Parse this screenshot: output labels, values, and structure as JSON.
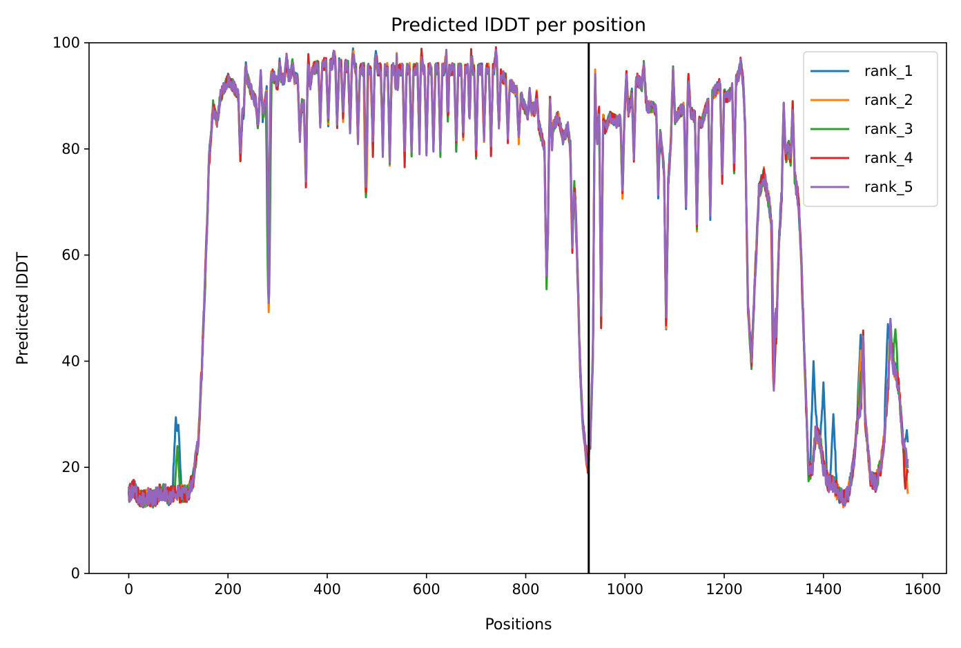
{
  "chart_data": {
    "type": "line",
    "title": "Predicted lDDT per position",
    "xlabel": "Positions",
    "ylabel": "Predicted lDDT",
    "xlim": [
      -80,
      1648
    ],
    "ylim": [
      0,
      100
    ],
    "xticks": [
      0,
      200,
      400,
      600,
      800,
      1000,
      1200,
      1400,
      1600
    ],
    "yticks": [
      0,
      20,
      40,
      60,
      80,
      100
    ],
    "grid": false,
    "legend_position": "top-right",
    "chain_break_x": 927,
    "series": [
      {
        "name": "rank_1",
        "color": "#1f77b4"
      },
      {
        "name": "rank_2",
        "color": "#ff7f0e"
      },
      {
        "name": "rank_3",
        "color": "#2ca02c"
      },
      {
        "name": "rank_4",
        "color": "#d62728"
      },
      {
        "name": "rank_5",
        "color": "#9467bd"
      }
    ],
    "shared_profile": [
      [
        0,
        15
      ],
      [
        10,
        16
      ],
      [
        20,
        14.5
      ],
      [
        30,
        14
      ],
      [
        40,
        14.5
      ],
      [
        50,
        14
      ],
      [
        60,
        15
      ],
      [
        70,
        15.5
      ],
      [
        80,
        14.5
      ],
      [
        90,
        15
      ],
      [
        100,
        15
      ],
      [
        110,
        15
      ],
      [
        120,
        15
      ],
      [
        130,
        18
      ],
      [
        140,
        25
      ],
      [
        148,
        40
      ],
      [
        155,
        58
      ],
      [
        162,
        78
      ],
      [
        170,
        88
      ],
      [
        178,
        85
      ],
      [
        185,
        90
      ],
      [
        200,
        93
      ],
      [
        210,
        92
      ],
      [
        220,
        90
      ],
      [
        230,
        86
      ],
      [
        240,
        93
      ],
      [
        250,
        90
      ],
      [
        260,
        88
      ],
      [
        270,
        86
      ],
      [
        280,
        92
      ],
      [
        290,
        94
      ],
      [
        300,
        92
      ],
      [
        320,
        94
      ],
      [
        340,
        93
      ],
      [
        350,
        88
      ],
      [
        360,
        88
      ],
      [
        370,
        95
      ],
      [
        390,
        96
      ],
      [
        420,
        96
      ],
      [
        460,
        95
      ],
      [
        500,
        95
      ],
      [
        540,
        95
      ],
      [
        580,
        95
      ],
      [
        620,
        95
      ],
      [
        660,
        95
      ],
      [
        700,
        95
      ],
      [
        740,
        95
      ],
      [
        770,
        92
      ],
      [
        790,
        90
      ],
      [
        805,
        86
      ],
      [
        815,
        88
      ],
      [
        825,
        85
      ],
      [
        838,
        80
      ],
      [
        845,
        68
      ],
      [
        855,
        84
      ],
      [
        865,
        86
      ],
      [
        875,
        82
      ],
      [
        885,
        84
      ],
      [
        895,
        76
      ],
      [
        900,
        70
      ],
      [
        905,
        55
      ],
      [
        910,
        38
      ],
      [
        915,
        28
      ],
      [
        920,
        24
      ],
      [
        925,
        20
      ],
      [
        930,
        25
      ],
      [
        935,
        40
      ],
      [
        940,
        70
      ],
      [
        945,
        85
      ],
      [
        950,
        88
      ],
      [
        960,
        84
      ],
      [
        970,
        86
      ],
      [
        985,
        85
      ],
      [
        995,
        86
      ],
      [
        1005,
        86
      ],
      [
        1015,
        91
      ],
      [
        1025,
        93
      ],
      [
        1035,
        92
      ],
      [
        1045,
        88
      ],
      [
        1055,
        88
      ],
      [
        1065,
        87
      ],
      [
        1075,
        80
      ],
      [
        1085,
        70
      ],
      [
        1095,
        85
      ],
      [
        1110,
        87
      ],
      [
        1125,
        88
      ],
      [
        1140,
        86
      ],
      [
        1155,
        85
      ],
      [
        1165,
        88
      ],
      [
        1175,
        90
      ],
      [
        1190,
        92
      ],
      [
        1200,
        90
      ],
      [
        1210,
        90
      ],
      [
        1220,
        92
      ],
      [
        1230,
        94
      ],
      [
        1238,
        93
      ],
      [
        1242,
        85
      ],
      [
        1248,
        50
      ],
      [
        1255,
        40
      ],
      [
        1262,
        55
      ],
      [
        1270,
        72
      ],
      [
        1280,
        75
      ],
      [
        1290,
        70
      ],
      [
        1300,
        62
      ],
      [
        1305,
        45
      ],
      [
        1310,
        62
      ],
      [
        1320,
        78
      ],
      [
        1330,
        80
      ],
      [
        1340,
        76
      ],
      [
        1350,
        70
      ],
      [
        1355,
        60
      ],
      [
        1362,
        40
      ],
      [
        1370,
        19
      ],
      [
        1378,
        20
      ],
      [
        1385,
        27
      ],
      [
        1395,
        24
      ],
      [
        1400,
        20
      ],
      [
        1410,
        17
      ],
      [
        1420,
        17
      ],
      [
        1430,
        15
      ],
      [
        1440,
        14
      ],
      [
        1450,
        15
      ],
      [
        1460,
        20
      ],
      [
        1470,
        30
      ],
      [
        1478,
        32
      ],
      [
        1485,
        28
      ],
      [
        1495,
        18
      ],
      [
        1505,
        17
      ],
      [
        1515,
        20
      ],
      [
        1522,
        25
      ],
      [
        1530,
        35
      ],
      [
        1538,
        40
      ],
      [
        1545,
        38
      ],
      [
        1552,
        35
      ],
      [
        1560,
        25
      ],
      [
        1570,
        20
      ]
    ],
    "dips": [
      [
        225,
        78
      ],
      [
        260,
        85
      ],
      [
        282,
        50
      ],
      [
        345,
        82
      ],
      [
        357,
        74
      ],
      [
        386,
        85
      ],
      [
        402,
        85
      ],
      [
        420,
        85
      ],
      [
        432,
        86
      ],
      [
        446,
        84
      ],
      [
        462,
        82
      ],
      [
        478,
        72
      ],
      [
        492,
        80
      ],
      [
        512,
        80
      ],
      [
        526,
        78
      ],
      [
        540,
        78
      ],
      [
        556,
        78
      ],
      [
        570,
        79
      ],
      [
        586,
        80
      ],
      [
        600,
        80
      ],
      [
        614,
        80
      ],
      [
        628,
        80
      ],
      [
        642,
        78
      ],
      [
        660,
        80
      ],
      [
        674,
        82
      ],
      [
        688,
        79
      ],
      [
        700,
        79
      ],
      [
        716,
        82
      ],
      [
        730,
        80
      ],
      [
        746,
        84
      ],
      [
        764,
        82
      ],
      [
        786,
        82
      ],
      [
        842,
        55
      ],
      [
        894,
        62
      ],
      [
        952,
        47
      ],
      [
        995,
        72
      ],
      [
        1018,
        78
      ],
      [
        1067,
        72
      ],
      [
        1083,
        47
      ],
      [
        1123,
        70
      ],
      [
        1145,
        66
      ],
      [
        1172,
        68
      ],
      [
        1196,
        74
      ],
      [
        1220,
        76
      ],
      [
        1300,
        36
      ]
    ],
    "spikes": [
      [
        236,
        96
      ],
      [
        266,
        94
      ],
      [
        287,
        94
      ],
      [
        304,
        96
      ],
      [
        318,
        97
      ],
      [
        330,
        96
      ],
      [
        362,
        97
      ],
      [
        414,
        98
      ],
      [
        452,
        98
      ],
      [
        498,
        98
      ],
      [
        540,
        98
      ],
      [
        590,
        98
      ],
      [
        640,
        98
      ],
      [
        690,
        98
      ],
      [
        740,
        98
      ],
      [
        808,
        91
      ],
      [
        822,
        90
      ],
      [
        849,
        90
      ],
      [
        940,
        94
      ],
      [
        1003,
        94
      ],
      [
        1038,
        96
      ],
      [
        1097,
        95
      ],
      [
        1128,
        93
      ],
      [
        1233,
        96
      ],
      [
        1320,
        88
      ],
      [
        1338,
        88
      ],
      [
        1480,
        45
      ],
      [
        1535,
        47
      ]
    ],
    "rank_1_bump": [
      [
        95,
        30
      ],
      [
        100,
        28
      ],
      [
        1380,
        40
      ],
      [
        1400,
        36
      ],
      [
        1420,
        30
      ],
      [
        1475,
        45
      ],
      [
        1530,
        47
      ],
      [
        1568,
        27
      ]
    ],
    "rank_3_bump": [
      [
        98,
        24
      ],
      [
        282,
        51
      ],
      [
        1476,
        38
      ],
      [
        1545,
        46
      ]
    ]
  }
}
